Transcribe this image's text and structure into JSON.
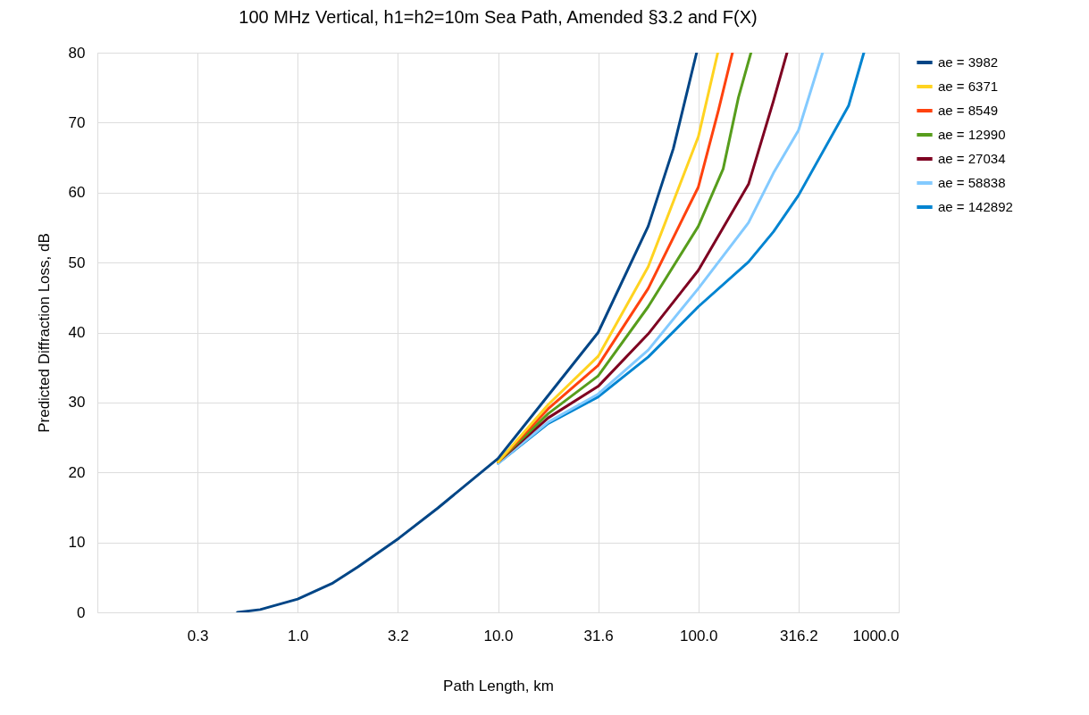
{
  "chart_data": {
    "type": "line",
    "title": "100 MHz Vertical, h1=h2=10m Sea Path, Amended §3.2 and F(X)",
    "xlabel": "Path Length, km",
    "ylabel": "Predicted Diffraction Loss, dB",
    "log": "x",
    "xlim": [
      0.1,
      1000
    ],
    "xticks": [
      {
        "value": 0.3162,
        "label": "0.3"
      },
      {
        "value": 1,
        "label": "1.0"
      },
      {
        "value": 3.162,
        "label": "3.2"
      },
      {
        "value": 10,
        "label": "10.0"
      },
      {
        "value": 31.62,
        "label": "31.6"
      },
      {
        "value": 100,
        "label": "100.0"
      },
      {
        "value": 316.2,
        "label": "316.2"
      },
      {
        "value": 1000,
        "label": "1000.0"
      }
    ],
    "ylim": [
      0,
      80
    ],
    "yticks": [
      0,
      10,
      20,
      30,
      40,
      50,
      60,
      70,
      80
    ],
    "grid": true,
    "legend": "right",
    "line_style": "solid",
    "marker": "none",
    "series": [
      {
        "name": "ae = 3982",
        "color": "#004586",
        "x": [
          0.5,
          0.65,
          1,
          1.5,
          2,
          3.2,
          5,
          10,
          17.8,
          31.6,
          56.2,
          75,
          98
        ],
        "values": [
          0,
          0.4,
          1.9,
          4.2,
          6.5,
          10.6,
          14.9,
          22,
          31,
          40,
          55.2,
          66.3,
          80
        ]
      },
      {
        "name": "ae = 6371",
        "color": "#ffd320",
        "x": [
          10,
          17.8,
          31.6,
          56.2,
          100,
          125
        ],
        "values": [
          21.5,
          29.7,
          36.6,
          49.4,
          68,
          80
        ]
      },
      {
        "name": "ae = 8549",
        "color": "#ff420e",
        "x": [
          10,
          17.8,
          31.6,
          56.2,
          100,
          126,
          148
        ],
        "values": [
          21.5,
          29.1,
          35.3,
          46.3,
          60.8,
          71.8,
          80
        ]
      },
      {
        "name": "ae = 12990",
        "color": "#579d1c",
        "x": [
          10,
          17.8,
          31.6,
          56.2,
          100,
          133,
          158.5,
          183
        ],
        "values": [
          21.5,
          28.4,
          33.8,
          43.7,
          55.2,
          63.4,
          73.6,
          80
        ]
      },
      {
        "name": "ae = 27034",
        "color": "#7e0021",
        "x": [
          10,
          17.8,
          31.6,
          56.2,
          100,
          178,
          237,
          277
        ],
        "values": [
          21.5,
          27.8,
          32.3,
          39.8,
          48.9,
          61.2,
          73.1,
          80
        ]
      },
      {
        "name": "ae = 58838",
        "color": "#83caff",
        "x": [
          10,
          17.8,
          31.6,
          56.2,
          100,
          178,
          237,
          316,
          417
        ],
        "values": [
          21.3,
          27.2,
          31.2,
          37.5,
          46.3,
          55.7,
          62.8,
          68.9,
          80
        ]
      },
      {
        "name": "ae = 142892",
        "color": "#0084d1",
        "x": [
          10,
          17.8,
          31.6,
          56.2,
          100,
          178,
          237,
          316,
          562,
          670
        ],
        "values": [
          21.3,
          27,
          30.8,
          36.5,
          43.7,
          50.1,
          54.4,
          59.6,
          72.4,
          80
        ]
      }
    ]
  }
}
